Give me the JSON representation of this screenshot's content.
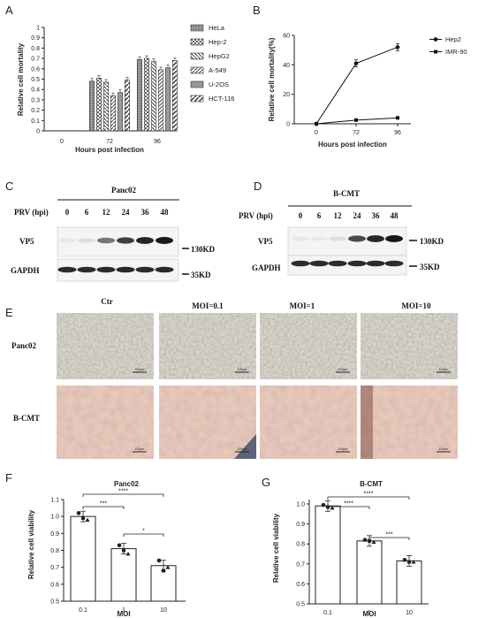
{
  "panels": {
    "A": {
      "letter": "A",
      "ylabel": "Relative cell mortality",
      "xlabel": "Hours post infection",
      "y_ticks": [
        "0",
        "0.1",
        "0.2",
        "0.3",
        "0.4",
        "0.5",
        "0.6",
        "0.7",
        "0.8",
        "0.9",
        "1"
      ],
      "x_ticks": [
        "0",
        "72",
        "96"
      ],
      "legend": [
        "HeLa",
        "Hep-2",
        "HepG2",
        "A-549",
        "U-2OS",
        "HCT-116"
      ]
    },
    "B": {
      "letter": "B",
      "ylabel": "Relative cell mortality(%)",
      "xlabel": "Hours post infection",
      "y_ticks": [
        "0",
        "20",
        "40",
        "60"
      ],
      "x_ticks": [
        "0",
        "72",
        "96"
      ],
      "legend": [
        "Hep2",
        "IMR-90"
      ]
    },
    "C": {
      "letter": "C",
      "title": "Panc02",
      "row_header": "PRV (hpi)",
      "lanes": [
        "0",
        "6",
        "12",
        "24",
        "36",
        "48"
      ],
      "bands": [
        "VP5",
        "GAPDH"
      ],
      "sizes": [
        "130KD",
        "35KD"
      ]
    },
    "D": {
      "letter": "D",
      "title": "B-CMT",
      "row_header": "PRV (hpi)",
      "lanes": [
        "0",
        "6",
        "12",
        "24",
        "36",
        "48"
      ],
      "bands": [
        "VP5",
        "GAPDH"
      ],
      "sizes": [
        "130KD",
        "35KD"
      ]
    },
    "E": {
      "letter": "E",
      "columns": [
        "Ctr",
        "MOI=0.1",
        "MOI=1",
        "MOI=10"
      ],
      "rows": [
        "Panc02",
        "B-CMT"
      ],
      "scale_bar": "100μm"
    },
    "F": {
      "letter": "F",
      "title": "Panc02",
      "ylabel": "Relative cell viability",
      "xlabel": "MOI",
      "y_ticks": [
        "0.5",
        "0.6",
        "0.7",
        "0.8",
        "0.9",
        "1.0",
        "1.1"
      ],
      "sig": [
        "****",
        "***",
        "*"
      ]
    },
    "G": {
      "letter": "G",
      "title": "B-CMT",
      "ylabel": "Relative cell viability",
      "xlabel": "MOI",
      "y_ticks": [
        "0.5",
        "0.6",
        "0.7",
        "0.8",
        "0.9",
        "1.0"
      ],
      "sig": [
        "****",
        "****",
        "***"
      ]
    }
  },
  "chart_data": [
    {
      "id": "A",
      "type": "bar",
      "categories": [
        "0",
        "72",
        "96"
      ],
      "ylim": [
        0,
        1
      ],
      "series": [
        {
          "name": "HeLa",
          "values": [
            0,
            0.48,
            0.69
          ]
        },
        {
          "name": "Hep-2",
          "values": [
            0,
            0.51,
            0.7
          ]
        },
        {
          "name": "HepG2",
          "values": [
            0,
            0.47,
            0.67
          ]
        },
        {
          "name": "A-549",
          "values": [
            0,
            0.34,
            0.59
          ]
        },
        {
          "name": "U-2OS",
          "values": [
            0,
            0.37,
            0.61
          ]
        },
        {
          "name": "HCT-116",
          "values": [
            0,
            0.49,
            0.68
          ]
        }
      ]
    },
    {
      "id": "B",
      "type": "line",
      "x": [
        "0",
        "72",
        "96"
      ],
      "ylim": [
        0,
        60
      ],
      "series": [
        {
          "name": "Hep2",
          "values": [
            0,
            41,
            52
          ]
        },
        {
          "name": "IMR-90",
          "values": [
            0,
            2.5,
            4
          ]
        }
      ]
    },
    {
      "id": "F",
      "type": "bar",
      "categories": [
        "0.1",
        "1",
        "10"
      ],
      "values": [
        1.0,
        0.81,
        0.71
      ],
      "ylim": [
        0.5,
        1.1
      ]
    },
    {
      "id": "G",
      "type": "bar",
      "categories": [
        "0.1",
        "1",
        "10"
      ],
      "values": [
        0.99,
        0.815,
        0.715
      ],
      "ylim": [
        0.5,
        1.0
      ]
    }
  ],
  "colors": {
    "panc_micro": "#d9d6cc",
    "bcmt_micro": "#e7c8bb",
    "blot_band": "#1a1a1a",
    "blot_bg": "#f2f2f2"
  }
}
